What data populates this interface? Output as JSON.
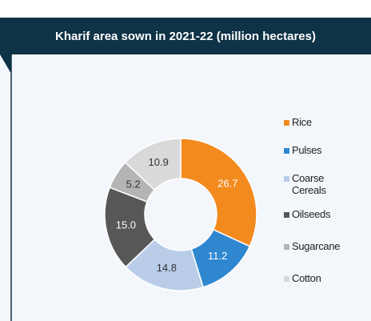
{
  "chart_data": {
    "type": "donut",
    "title": "Kharif area sown in 2021-22 (million hectares)",
    "categories": [
      "Rice",
      "Pulses",
      "Coarse Cereals",
      "Oilseeds",
      "Sugarcane",
      "Cotton"
    ],
    "values": [
      26.7,
      11.2,
      14.8,
      15.0,
      5.2,
      10.9
    ],
    "value_labels": [
      "26.7",
      "11.2",
      "14.8",
      "15.0",
      "5.2",
      "10.9"
    ],
    "colors": [
      "#f28a1e",
      "#2f87d0",
      "#b9cde8",
      "#575757",
      "#b4b4b4",
      "#d9d9d9"
    ],
    "legend": "right"
  }
}
